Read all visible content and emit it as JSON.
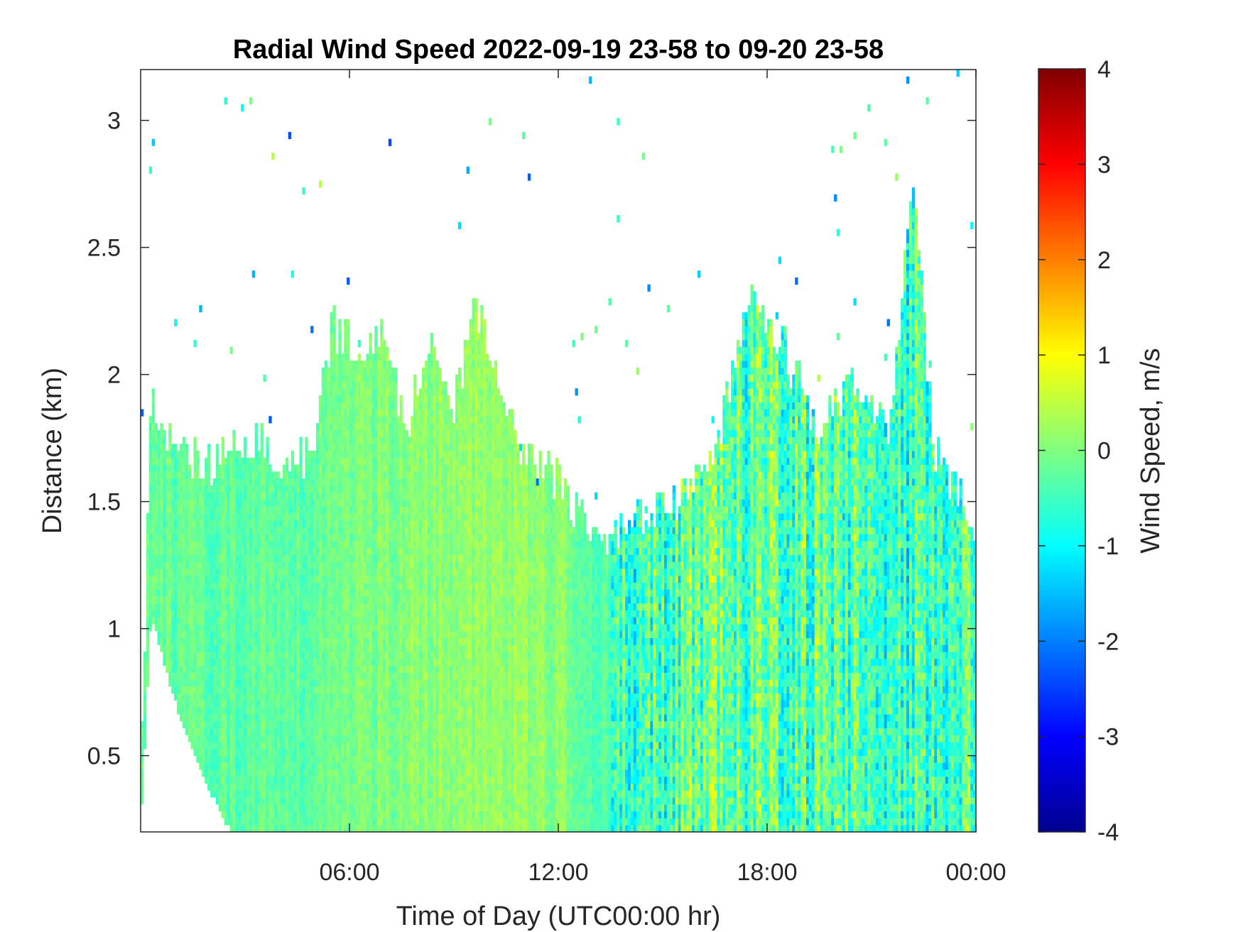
{
  "chart_data": {
    "type": "heatmap",
    "title": "Radial Wind Speed 2022-09-19 23-58 to 09-20 23-58",
    "xlabel": "Time of Day (UTC00:00 hr)",
    "ylabel": "Distance (km)",
    "xlim_hours": [
      0,
      24
    ],
    "ylim_km": [
      0.2,
      3.2
    ],
    "x_ticks": [
      {
        "value": 6,
        "label": "06:00"
      },
      {
        "value": 12,
        "label": "12:00"
      },
      {
        "value": 18,
        "label": "18:00"
      },
      {
        "value": 24,
        "label": "00:00"
      }
    ],
    "y_ticks": [
      {
        "value": 0.5,
        "label": "0.5"
      },
      {
        "value": 1,
        "label": "1"
      },
      {
        "value": 1.5,
        "label": "1.5"
      },
      {
        "value": 2,
        "label": "2"
      },
      {
        "value": 2.5,
        "label": "2.5"
      },
      {
        "value": 3,
        "label": "3"
      }
    ],
    "colorbar": {
      "label": "Wind Speed, m/s",
      "colormap": "jet",
      "clim": [
        -4,
        4
      ],
      "ticks": [
        {
          "value": 4,
          "label": "4"
        },
        {
          "value": 3,
          "label": "3"
        },
        {
          "value": 2,
          "label": "2"
        },
        {
          "value": 1,
          "label": "1"
        },
        {
          "value": 0,
          "label": "0"
        },
        {
          "value": -1,
          "label": "-1"
        },
        {
          "value": -2,
          "label": "-2"
        },
        {
          "value": -3,
          "label": "-3"
        },
        {
          "value": -4,
          "label": "-4"
        }
      ]
    },
    "coverage_top_km": [
      {
        "t": 0.0,
        "top": 0.35
      },
      {
        "t": 0.3,
        "top": 1.9
      },
      {
        "t": 0.8,
        "top": 1.75
      },
      {
        "t": 1.2,
        "top": 1.7
      },
      {
        "t": 2.0,
        "top": 1.65
      },
      {
        "t": 2.8,
        "top": 1.75
      },
      {
        "t": 3.5,
        "top": 1.75
      },
      {
        "t": 4.2,
        "top": 1.62
      },
      {
        "t": 5.0,
        "top": 1.7
      },
      {
        "t": 5.5,
        "top": 2.2
      },
      {
        "t": 6.5,
        "top": 2.05
      },
      {
        "t": 7.0,
        "top": 2.2
      },
      {
        "t": 7.6,
        "top": 1.75
      },
      {
        "t": 8.3,
        "top": 2.15
      },
      {
        "t": 9.0,
        "top": 1.85
      },
      {
        "t": 9.6,
        "top": 2.3
      },
      {
        "t": 10.3,
        "top": 1.95
      },
      {
        "t": 11.0,
        "top": 1.7
      },
      {
        "t": 12.0,
        "top": 1.58
      },
      {
        "t": 12.8,
        "top": 1.4
      },
      {
        "t": 13.5,
        "top": 1.36
      },
      {
        "t": 14.5,
        "top": 1.45
      },
      {
        "t": 15.5,
        "top": 1.5
      },
      {
        "t": 16.5,
        "top": 1.7
      },
      {
        "t": 17.5,
        "top": 2.3
      },
      {
        "t": 18.5,
        "top": 2.1
      },
      {
        "t": 19.5,
        "top": 1.8
      },
      {
        "t": 20.5,
        "top": 2.0
      },
      {
        "t": 21.5,
        "top": 1.75
      },
      {
        "t": 22.2,
        "top": 2.75
      },
      {
        "t": 22.8,
        "top": 1.7
      },
      {
        "t": 23.5,
        "top": 1.55
      },
      {
        "t": 24.0,
        "top": 1.4
      }
    ],
    "coverage_bottom_km": [
      {
        "t": 0.0,
        "bottom": 0.2
      },
      {
        "t": 0.3,
        "bottom": 1.05
      },
      {
        "t": 0.7,
        "bottom": 0.85
      },
      {
        "t": 1.2,
        "bottom": 0.62
      },
      {
        "t": 1.7,
        "bottom": 0.45
      },
      {
        "t": 2.2,
        "bottom": 0.3
      },
      {
        "t": 2.6,
        "bottom": 0.2
      },
      {
        "t": 24.0,
        "bottom": 0.2
      }
    ],
    "mean_speed_by_hour_ms": [
      {
        "t": 0,
        "v": -0.2
      },
      {
        "t": 3,
        "v": -0.3
      },
      {
        "t": 6,
        "v": -0.1
      },
      {
        "t": 9,
        "v": 0.2
      },
      {
        "t": 12,
        "v": 0.1
      },
      {
        "t": 14,
        "v": -0.6
      },
      {
        "t": 16,
        "v": -0.2
      },
      {
        "t": 18,
        "v": -0.3
      },
      {
        "t": 20,
        "v": -0.4
      },
      {
        "t": 22,
        "v": -0.6
      },
      {
        "t": 24,
        "v": -0.4
      }
    ]
  }
}
